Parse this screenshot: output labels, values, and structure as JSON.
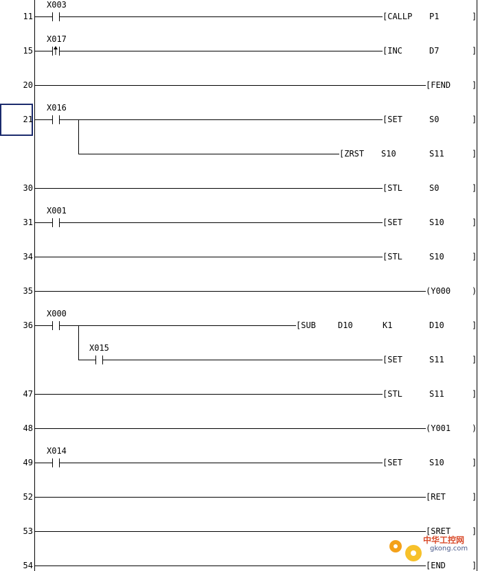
{
  "rungs": [
    {
      "step": "11",
      "contacts": [
        {
          "label": "X003",
          "type": "no"
        }
      ],
      "instruction": "[CALLP",
      "operands": [
        "P1"
      ],
      "end": "]"
    },
    {
      "step": "15",
      "contacts": [
        {
          "label": "X017",
          "type": "rising"
        }
      ],
      "instruction": "[INC",
      "operands": [
        "D7"
      ],
      "end": "]"
    },
    {
      "step": "20",
      "contacts": [],
      "instruction": "[FEND",
      "operands": [],
      "end": "]"
    },
    {
      "step": "21",
      "contacts": [
        {
          "label": "X016",
          "type": "no"
        }
      ],
      "instruction": "[SET",
      "operands": [
        "S0"
      ],
      "end": "]",
      "branch": {
        "instruction": "[ZRST",
        "operands": [
          "S10",
          "S11"
        ],
        "end": "]"
      }
    },
    {
      "step": "30",
      "contacts": [],
      "instruction": "[STL",
      "operands": [
        "S0"
      ],
      "end": "]"
    },
    {
      "step": "31",
      "contacts": [
        {
          "label": "X001",
          "type": "no"
        }
      ],
      "instruction": "[SET",
      "operands": [
        "S10"
      ],
      "end": "]"
    },
    {
      "step": "34",
      "contacts": [],
      "instruction": "[STL",
      "operands": [
        "S10"
      ],
      "end": "]"
    },
    {
      "step": "35",
      "contacts": [],
      "instruction": "(Y000",
      "operands": [],
      "end": ")"
    },
    {
      "step": "36",
      "contacts": [
        {
          "label": "X000",
          "type": "no"
        }
      ],
      "instruction": "[SUB",
      "operands": [
        "D10",
        "K1",
        "D10"
      ],
      "end": "]",
      "branch": {
        "contact": {
          "label": "X015",
          "type": "no"
        },
        "instruction": "[SET",
        "operands": [
          "S11"
        ],
        "end": "]"
      }
    },
    {
      "step": "47",
      "contacts": [],
      "instruction": "[STL",
      "operands": [
        "S11"
      ],
      "end": "]"
    },
    {
      "step": "48",
      "contacts": [],
      "instruction": "(Y001",
      "operands": [],
      "end": ")"
    },
    {
      "step": "49",
      "contacts": [
        {
          "label": "X014",
          "type": "no"
        }
      ],
      "instruction": "[SET",
      "operands": [
        "S10"
      ],
      "end": "]"
    },
    {
      "step": "52",
      "contacts": [],
      "instruction": "[RET",
      "operands": [],
      "end": "]"
    },
    {
      "step": "53",
      "contacts": [],
      "instruction": "[SRET",
      "operands": [],
      "end": "]"
    },
    {
      "step": "54",
      "contacts": [],
      "instruction": "[END",
      "operands": [],
      "end": "]"
    }
  ],
  "watermark": {
    "cn": "中华工控网",
    "url": "gkong.com"
  },
  "colors": {
    "cursor": "#1a2a6c",
    "watermark": "#d94b2b"
  }
}
